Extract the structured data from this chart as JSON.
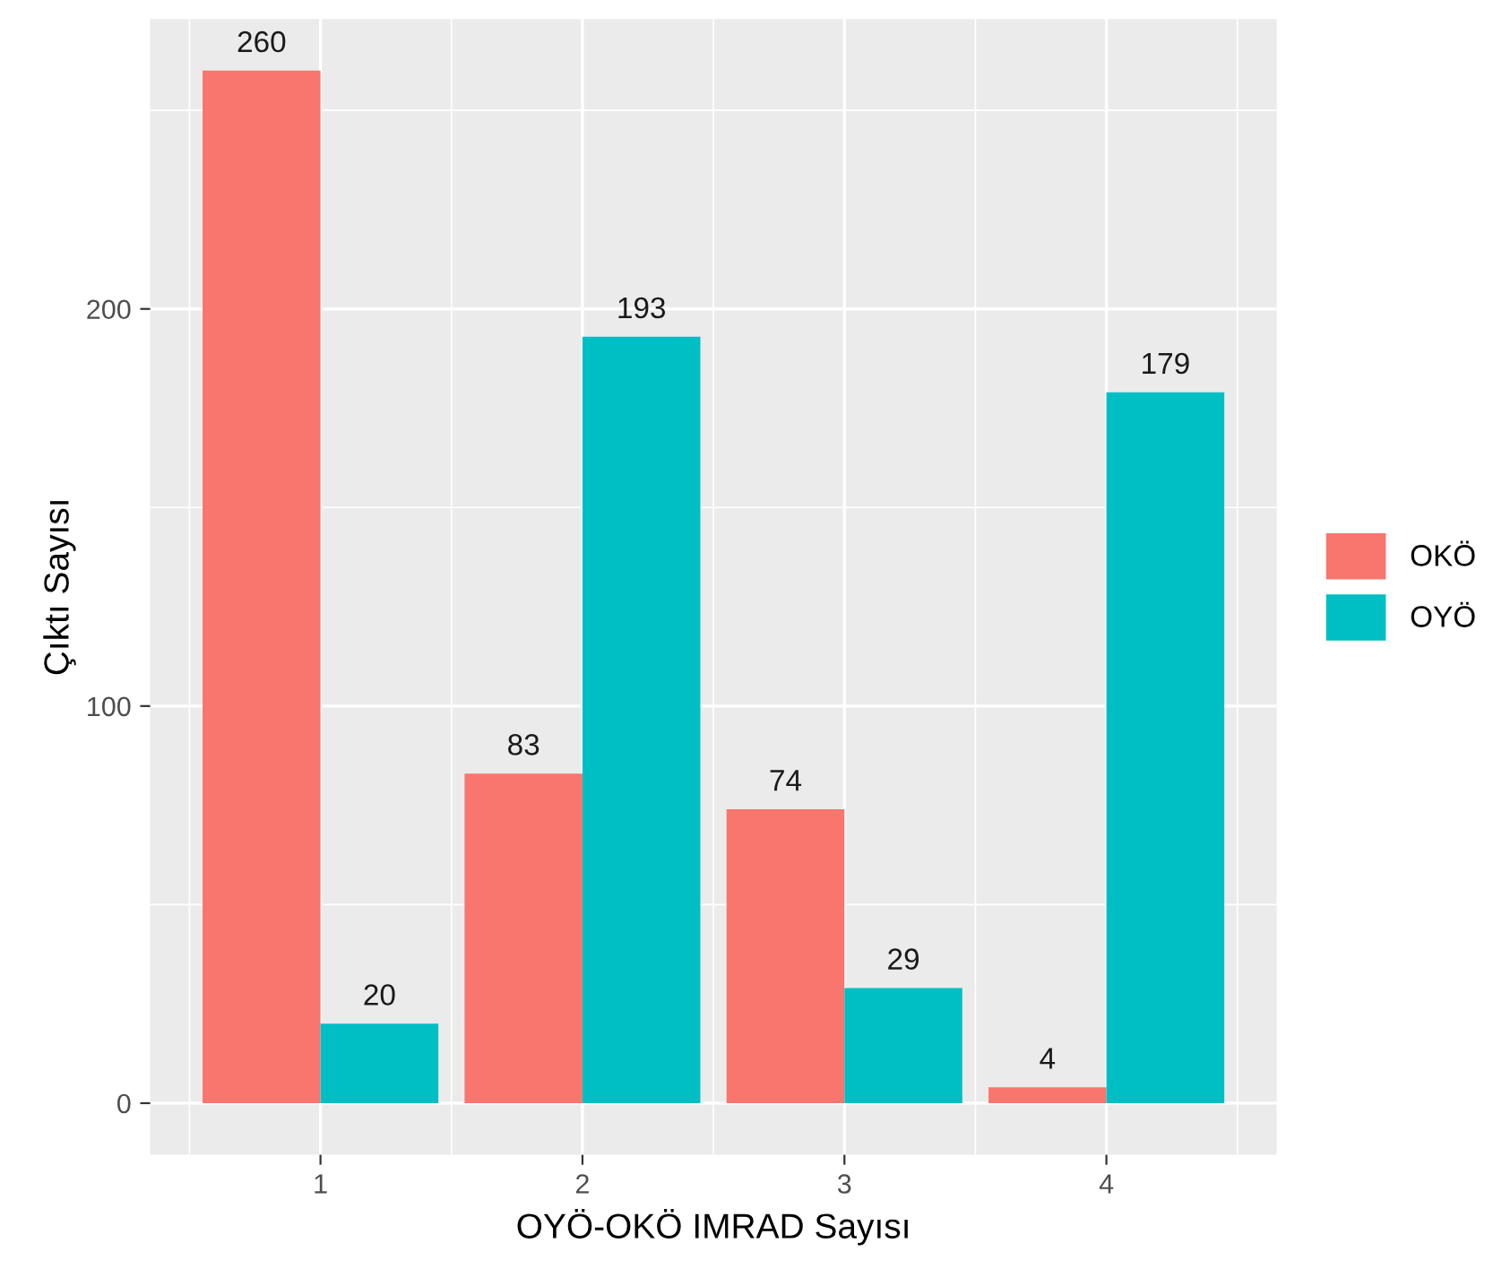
{
  "chart_data": {
    "type": "bar",
    "xlabel": "OYÖ-OKÖ IMRAD Sayısı",
    "ylabel": "Çıktı Sayısı",
    "x": [
      1,
      2,
      3,
      4
    ],
    "series": [
      {
        "name": "OKÖ",
        "color": "#f8766d",
        "values": [
          260,
          83,
          74,
          4
        ]
      },
      {
        "name": "OYÖ",
        "color": "#00bfc4",
        "values": [
          20,
          193,
          29,
          179
        ]
      }
    ],
    "xlim": [
      0.35,
      4.65
    ],
    "xticks": [
      1,
      2,
      3,
      4
    ],
    "ylim": [
      -13,
      273
    ],
    "yticks": [
      0,
      100,
      200
    ],
    "grid": true,
    "legend": "right",
    "data_labels": true
  }
}
